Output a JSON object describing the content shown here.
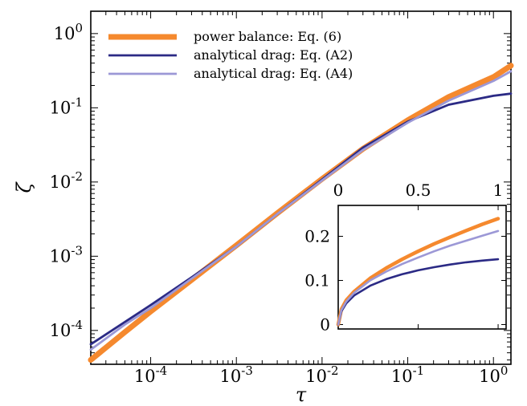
{
  "chart_data": [
    {
      "type": "line",
      "title": "",
      "xlabel": "τ",
      "ylabel": "ζ",
      "xscale": "log",
      "yscale": "log",
      "xlim": [
        2e-05,
        1.6
      ],
      "ylim": [
        3.5e-05,
        2.0
      ],
      "grid": false,
      "legend_position": "top-left",
      "xticks": [
        {
          "value": 0.0001,
          "base": "10",
          "exp": "-4"
        },
        {
          "value": 0.001,
          "base": "10",
          "exp": "-3"
        },
        {
          "value": 0.01,
          "base": "10",
          "exp": "-2"
        },
        {
          "value": 0.1,
          "base": "10",
          "exp": "-1"
        },
        {
          "value": 1,
          "base": "10",
          "exp": "0"
        }
      ],
      "yticks": [
        {
          "value": 0.0001,
          "base": "10",
          "exp": "-4"
        },
        {
          "value": 0.001,
          "base": "10",
          "exp": "-3"
        },
        {
          "value": 0.01,
          "base": "10",
          "exp": "-2"
        },
        {
          "value": 0.1,
          "base": "10",
          "exp": "-1"
        },
        {
          "value": 1,
          "base": "10",
          "exp": "0"
        }
      ],
      "series": [
        {
          "name": "power balance: Eq. (6)",
          "color": "#f5892e",
          "x": [
            2e-05,
            5e-05,
            0.0001,
            0.0003,
            0.001,
            0.003,
            0.01,
            0.03,
            0.1,
            0.3,
            1,
            1.6
          ],
          "y": [
            4e-05,
            9.5e-05,
            0.00018,
            0.00048,
            0.0014,
            0.0038,
            0.011,
            0.028,
            0.068,
            0.14,
            0.26,
            0.37
          ]
        },
        {
          "name": "analytical drag: Eq. (A2)",
          "color": "#2b2a85",
          "x": [
            2e-05,
            5e-05,
            0.0001,
            0.0003,
            0.001,
            0.003,
            0.01,
            0.03,
            0.1,
            0.3,
            1,
            1.6
          ],
          "y": [
            6.5e-05,
            0.00013,
            0.00022,
            0.00052,
            0.00135,
            0.0037,
            0.0108,
            0.029,
            0.065,
            0.11,
            0.145,
            0.155
          ]
        },
        {
          "name": "analytical drag: Eq. (A4)",
          "color": "#9c98d6",
          "x": [
            2e-05,
            5e-05,
            0.0001,
            0.0003,
            0.001,
            0.003,
            0.01,
            0.03,
            0.1,
            0.3,
            1,
            1.6
          ],
          "y": [
            5.5e-05,
            0.00012,
            0.0002,
            0.0005,
            0.00135,
            0.0037,
            0.0105,
            0.027,
            0.063,
            0.125,
            0.23,
            0.31
          ]
        }
      ]
    },
    {
      "type": "line",
      "title": "",
      "xlabel": "",
      "ylabel": "",
      "xscale": "linear",
      "yscale": "linear",
      "xlim": [
        0,
        1.05
      ],
      "ylim": [
        -0.01,
        0.27
      ],
      "grid": false,
      "xticks": [
        "0",
        "0.5",
        "1"
      ],
      "xtick_values": [
        0,
        0.5,
        1
      ],
      "yticks": [
        "0",
        "0.1",
        "0.2"
      ],
      "ytick_values": [
        0,
        0.1,
        0.2
      ],
      "series": [
        {
          "name": "power balance: Eq. (6)",
          "color": "#f5892e",
          "x": [
            0,
            0.02,
            0.05,
            0.1,
            0.2,
            0.3,
            0.4,
            0.5,
            0.6,
            0.7,
            0.8,
            0.9,
            1.0
          ],
          "y": [
            0,
            0.035,
            0.055,
            0.075,
            0.105,
            0.128,
            0.148,
            0.166,
            0.183,
            0.198,
            0.213,
            0.227,
            0.24
          ]
        },
        {
          "name": "analytical drag: Eq. (A2)",
          "color": "#2b2a85",
          "x": [
            0,
            0.02,
            0.05,
            0.1,
            0.2,
            0.3,
            0.4,
            0.5,
            0.6,
            0.7,
            0.8,
            0.9,
            1.0
          ],
          "y": [
            0,
            0.03,
            0.048,
            0.066,
            0.088,
            0.103,
            0.114,
            0.123,
            0.13,
            0.136,
            0.141,
            0.145,
            0.148
          ]
        },
        {
          "name": "analytical drag: Eq. (A4)",
          "color": "#9c98d6",
          "x": [
            0,
            0.02,
            0.05,
            0.1,
            0.2,
            0.3,
            0.4,
            0.5,
            0.6,
            0.7,
            0.8,
            0.9,
            1.0
          ],
          "y": [
            0,
            0.033,
            0.052,
            0.072,
            0.1,
            0.12,
            0.137,
            0.152,
            0.166,
            0.179,
            0.19,
            0.201,
            0.212
          ]
        }
      ]
    }
  ]
}
